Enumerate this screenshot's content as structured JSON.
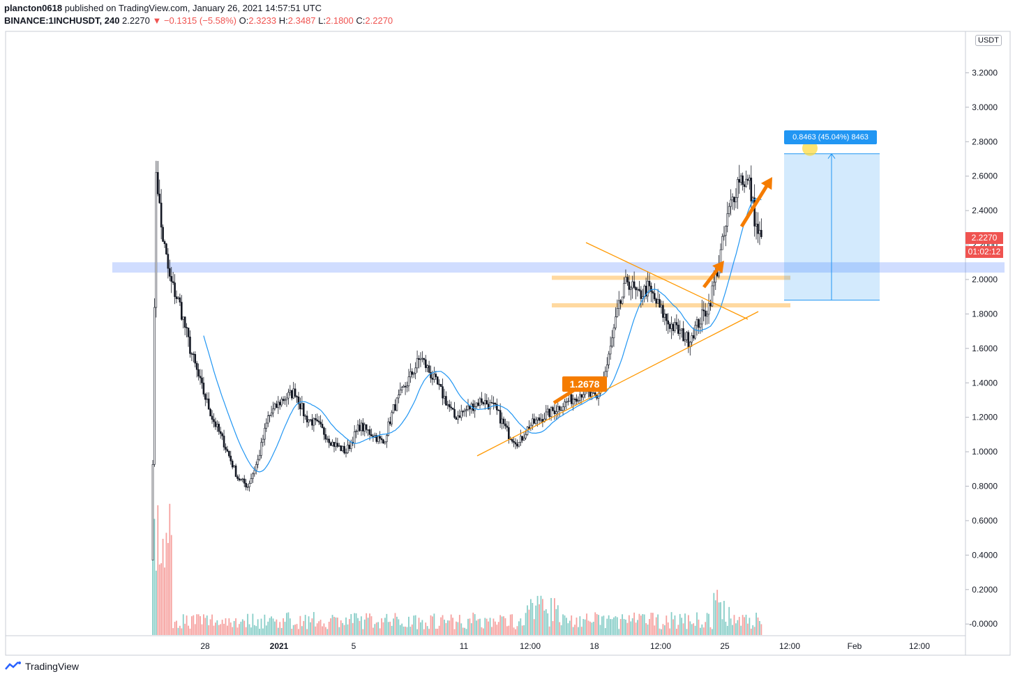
{
  "header": {
    "publisher": "plancton0618",
    "published_text": "published on TradingView.com, January 26, 2021 14:57:51 UTC",
    "symbol": "BINANCE:1INCHUSDT, 240",
    "last": "2.2270",
    "change": "−0.1315 (−5.58%)",
    "o_label": "O:",
    "o_value": "2.3233",
    "h_label": "H:",
    "h_value": "2.3487",
    "l_label": "L:",
    "l_value": "2.1800",
    "c_label": "C:",
    "c_value": "2.2270"
  },
  "axis": {
    "currency": "USDT",
    "price_tag": "2.2270",
    "countdown": "01:02:12"
  },
  "annotations": {
    "measure_label": "0.8463 (45.04%) 8463",
    "callout": "1.2678"
  },
  "footer": {
    "brand": "TradingView"
  },
  "colors": {
    "up": "#26a69a",
    "down": "#ef5350",
    "ma": "#2196f3",
    "zone": "#2962ff",
    "level": "#ffcc80",
    "triangle": "#ff9800",
    "arrow": "#f57c00"
  },
  "chart_data": {
    "type": "candlestick",
    "title": "",
    "y_ticks": [
      "3.2000",
      "3.0000",
      "2.8000",
      "2.6000",
      "2.4000",
      "2.2000",
      "2.0000",
      "1.8000",
      "1.6000",
      "1.4000",
      "1.2000",
      "1.0000",
      "0.8000",
      "0.6000",
      "0.4000",
      "0.2000",
      "-0.0000"
    ],
    "x_ticks": [
      "28",
      "2021",
      "5",
      "11",
      "12:00",
      "18",
      "12:00",
      "25",
      "12:00",
      "Feb",
      "12:00"
    ],
    "ylim": [
      -0.08,
      3.4
    ],
    "price_path": [
      [
        0,
        0.95,
        "start"
      ],
      [
        2,
        2.65
      ],
      [
        5,
        2.3
      ],
      [
        10,
        2.0
      ],
      [
        16,
        1.85
      ],
      [
        22,
        1.6
      ],
      [
        28,
        1.4
      ],
      [
        35,
        1.2
      ],
      [
        42,
        1.05
      ],
      [
        50,
        0.85
      ],
      [
        56,
        0.8
      ],
      [
        62,
        0.95
      ],
      [
        68,
        1.2
      ],
      [
        76,
        1.3
      ],
      [
        84,
        1.35
      ],
      [
        90,
        1.2
      ],
      [
        98,
        1.15
      ],
      [
        106,
        1.05
      ],
      [
        114,
        1.0
      ],
      [
        122,
        1.15
      ],
      [
        130,
        1.1
      ],
      [
        136,
        1.05
      ],
      [
        142,
        1.25
      ],
      [
        150,
        1.4
      ],
      [
        158,
        1.55
      ],
      [
        164,
        1.45
      ],
      [
        170,
        1.35
      ],
      [
        178,
        1.2
      ],
      [
        186,
        1.25
      ],
      [
        194,
        1.3
      ],
      [
        202,
        1.25
      ],
      [
        210,
        1.1
      ],
      [
        216,
        1.05
      ],
      [
        222,
        1.15
      ],
      [
        230,
        1.2
      ],
      [
        238,
        1.25
      ],
      [
        246,
        1.3
      ],
      [
        254,
        1.35
      ],
      [
        262,
        1.3
      ],
      [
        268,
        1.5
      ],
      [
        274,
        1.8
      ],
      [
        280,
        2.0
      ],
      [
        286,
        1.9
      ],
      [
        292,
        1.95
      ],
      [
        298,
        1.85
      ],
      [
        304,
        1.75
      ],
      [
        310,
        1.7
      ],
      [
        316,
        1.65
      ],
      [
        322,
        1.75
      ],
      [
        328,
        1.85
      ],
      [
        334,
        2.1
      ],
      [
        340,
        2.4
      ],
      [
        346,
        2.6
      ],
      [
        352,
        2.55
      ],
      [
        356,
        2.3
      ],
      [
        359,
        2.23
      ]
    ],
    "ma_line": "20-period moving average",
    "volume_ylim": [
      0,
      0.8
    ],
    "zones": [
      {
        "type": "horizontal_band",
        "from": 2.04,
        "to": 2.1
      },
      {
        "type": "level",
        "value": 2.01
      },
      {
        "type": "level",
        "value": 1.85
      }
    ],
    "measure": {
      "from": 1.88,
      "to": 2.73,
      "change": 0.8463,
      "pct": 45.04
    }
  }
}
